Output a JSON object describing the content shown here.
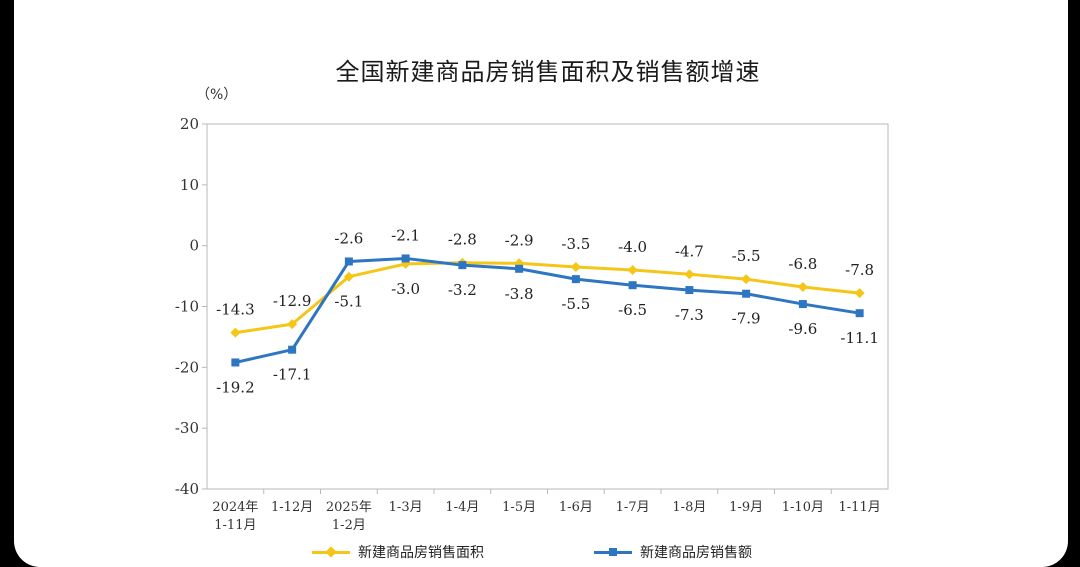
{
  "chart_data": {
    "type": "line",
    "title": "全国新建商品房销售面积及销售额增速",
    "unit_label": "（%）",
    "categories": [
      [
        "2024年",
        "1-11月"
      ],
      [
        "1-12月"
      ],
      [
        "2025年",
        "1-2月"
      ],
      [
        "1-3月"
      ],
      [
        "1-4月"
      ],
      [
        "1-5月"
      ],
      [
        "1-6月"
      ],
      [
        "1-7月"
      ],
      [
        "1-8月"
      ],
      [
        "1-9月"
      ],
      [
        "1-10月"
      ],
      [
        "1-11月"
      ]
    ],
    "y_ticks": [
      20,
      10,
      0,
      -10,
      -20,
      -30,
      -40
    ],
    "ylim": [
      -40,
      20
    ],
    "grid": false,
    "legend_position": "bottom",
    "series": [
      {
        "name": "新建商品房销售面积",
        "color": "#F5C518",
        "marker": "diamond",
        "values": [
          -14.3,
          -12.9,
          -5.1,
          -3.0,
          -2.8,
          -2.9,
          -3.5,
          -4.0,
          -4.7,
          -5.5,
          -6.8,
          -7.8
        ],
        "labels": [
          "-14.3",
          "-12.9",
          "-5.1",
          "-3.0",
          "-2.8",
          "-2.9",
          "-3.5",
          "-4.0",
          "-4.7",
          "-5.5",
          "-6.8",
          "-7.8"
        ],
        "label_side": [
          "above",
          "above",
          "below",
          "below",
          "above",
          "above",
          "above",
          "above",
          "above",
          "above",
          "above",
          "above"
        ]
      },
      {
        "name": "新建商品房销售额",
        "color": "#2E75C2",
        "marker": "square",
        "values": [
          -19.2,
          -17.1,
          -2.6,
          -2.1,
          -3.2,
          -3.8,
          -5.5,
          -6.5,
          -7.3,
          -7.9,
          -9.6,
          -11.1
        ],
        "labels": [
          "-19.2",
          "-17.1",
          "-2.6",
          "-2.1",
          "-3.2",
          "-3.8",
          "-5.5",
          "-6.5",
          "-7.3",
          "-7.9",
          "-9.6",
          "-11.1"
        ],
        "label_side": [
          "below",
          "below",
          "above",
          "above",
          "below",
          "below",
          "below",
          "below",
          "below",
          "below",
          "below",
          "below"
        ]
      }
    ]
  }
}
